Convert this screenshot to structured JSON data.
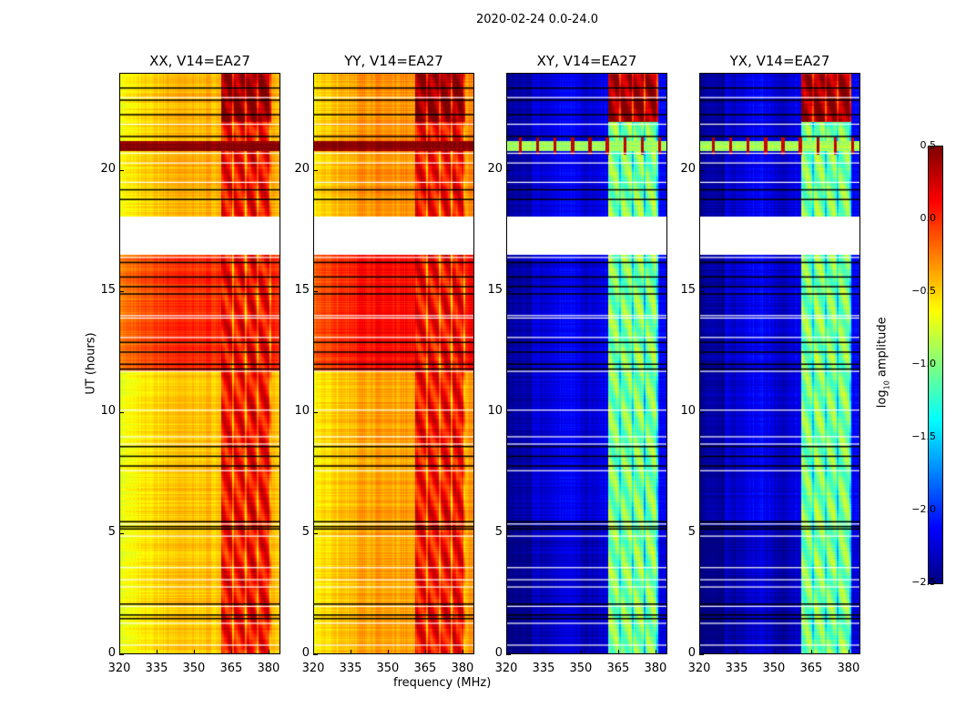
{
  "title": "2020-02-24 0.0-24.0",
  "chart_data": {
    "type": "heatmap",
    "xlabel": "frequency (MHz)",
    "ylabel": "UT (hours)",
    "xlim": [
      320,
      384.8
    ],
    "ylim": [
      0,
      24
    ],
    "xticks": [
      "320",
      "335",
      "350",
      "365",
      "380"
    ],
    "xtick_values": [
      320,
      335,
      350,
      365,
      380
    ],
    "yticks": [
      "0",
      "5",
      "10",
      "15",
      "20"
    ],
    "ytick_values": [
      0,
      5,
      10,
      15,
      20
    ],
    "colorbar": {
      "label_main": "log",
      "label_sub": "10",
      "label_tail": " amplitude",
      "range": [
        -2.5,
        0.5
      ],
      "ticks": [
        "0.5",
        "0.0",
        "−0.5",
        "−1.0",
        "−1.5",
        "−2.0",
        "−2.5"
      ],
      "tick_values": [
        0.5,
        0,
        -0.5,
        -1,
        -1.5,
        -2,
        -2.5
      ],
      "colormap": "jet"
    },
    "flagged_gap_hours": [
      16.5,
      18.1
    ],
    "rfi_band_mhz": [
      361,
      381
    ],
    "black_flag_hours": [
      1.5,
      1.65,
      2.1,
      5.2,
      5.3,
      5.5,
      7.8,
      8.2,
      8.6,
      11.8,
      12.0,
      12.5,
      12.9,
      14.9,
      15.2,
      15.6,
      16.2,
      18.8,
      19.2,
      21.4,
      22.3,
      22.9,
      23.4
    ],
    "white_flag_hours": [
      0.4,
      1.3,
      2.0,
      2.8,
      3.1,
      3.6,
      4.9,
      5.4,
      7.6,
      8.7,
      9.0,
      10.1,
      11.7,
      13.1,
      13.9,
      14.0,
      16.4,
      19.5,
      20.3,
      20.7,
      21.9,
      23.0
    ],
    "panels": [
      {
        "title": "XX, V14=EA27",
        "baseline_log_amp": -0.7,
        "band_log_amp": 0.0,
        "bright_event_hour": 21.0
      },
      {
        "title": "YY, V14=EA27",
        "baseline_log_amp": -0.6,
        "band_log_amp": 0.0,
        "bright_event_hour": 21.0
      },
      {
        "title": "XY, V14=EA27",
        "baseline_log_amp": -2.2,
        "band_log_amp": -1.1,
        "bright_event_hour": 21.0
      },
      {
        "title": "YX, V14=EA27",
        "baseline_log_amp": -2.2,
        "band_log_amp": -1.1,
        "bright_event_hour": 21.0
      }
    ]
  }
}
